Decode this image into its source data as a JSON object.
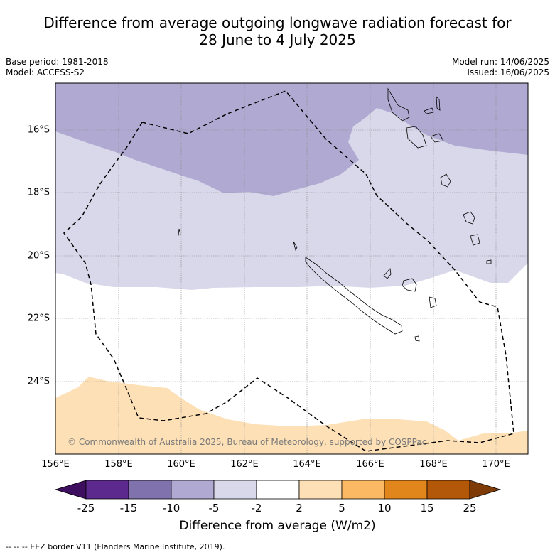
{
  "header": {
    "title_line1": "Difference from average outgoing longwave radiation forecast for",
    "title_line2": "28 June to 4 July 2025",
    "base_period": "Base period: 1981-2018",
    "model": "Model: ACCESS-S2",
    "model_run": "Model run: 14/06/2025",
    "issued": "Issued: 16/06/2025"
  },
  "map": {
    "lat_labels": [
      "16°S",
      "18°S",
      "20°S",
      "22°S",
      "24°S"
    ],
    "lon_labels": [
      "156°E",
      "158°E",
      "160°E",
      "162°E",
      "164°E",
      "166°E",
      "168°E",
      "170°E"
    ],
    "copyright": "© Commonwealth of Australia 2025, Bureau of Meteorology, supported by COSPPac",
    "colors": {
      "band_minus10": "#b0aad2",
      "band_minus5": "#d8d8ea",
      "band_plus2": "#fde0b6",
      "neutral": "#ffffff"
    }
  },
  "colorbar": {
    "ticks": [
      "-25",
      "-15",
      "-10",
      "-5",
      "-2",
      "2",
      "5",
      "10",
      "15",
      "25"
    ],
    "colors": [
      "#3f0f5f",
      "#5c2a8e",
      "#8073ad",
      "#b0aad2",
      "#d8d8ea",
      "#ffffff",
      "#fde0b6",
      "#fbb963",
      "#e1861a",
      "#b35808",
      "#7f3b07"
    ],
    "title": "Difference from average (W/m2)"
  },
  "footnote": "--  --  -- EEZ border V11 (Flanders Marine Institute, 2019)."
}
